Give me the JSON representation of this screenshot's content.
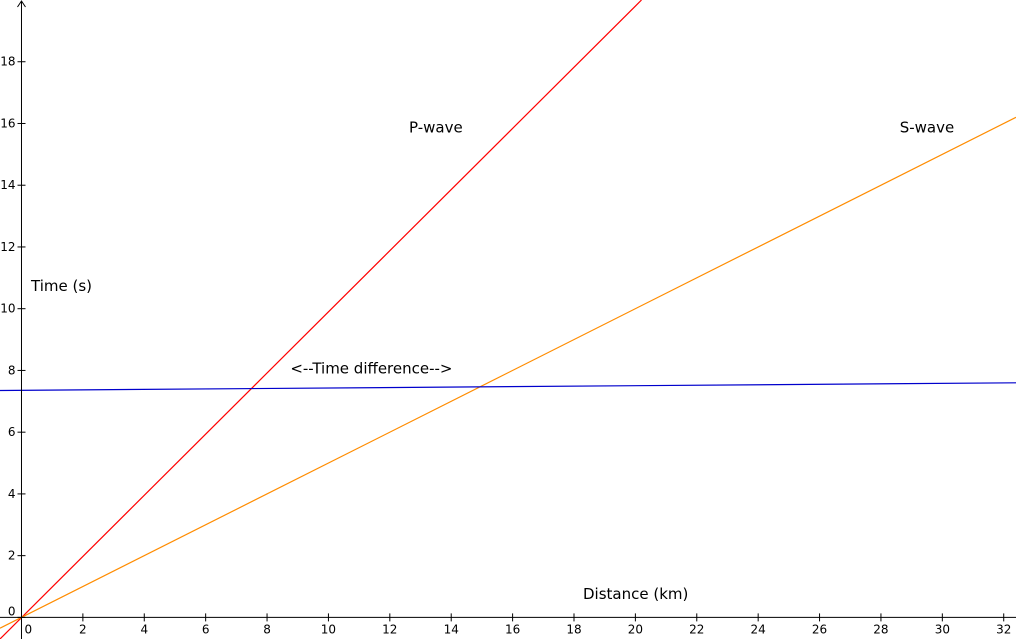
{
  "chart_data": {
    "type": "line",
    "title": "",
    "xlabel": "Distance (km)",
    "ylabel": "Time (s)",
    "xlim": [
      -0.7,
      32.4
    ],
    "ylim": [
      -0.7,
      20
    ],
    "x_ticks": [
      0,
      2,
      4,
      6,
      8,
      10,
      12,
      14,
      16,
      18,
      20,
      22,
      24,
      26,
      28,
      30,
      32
    ],
    "y_ticks": [
      0,
      2,
      4,
      6,
      8,
      10,
      12,
      14,
      16,
      18
    ],
    "grid": false,
    "series": [
      {
        "name": "P-wave",
        "color": "#ff0000",
        "x": [
          -0.7,
          20.2
        ],
        "y": [
          -0.7,
          20
        ]
      },
      {
        "name": "S-wave",
        "color": "#ff8c00",
        "x": [
          -0.7,
          32.4
        ],
        "y": [
          -0.35,
          16.2
        ]
      },
      {
        "name": "",
        "color": "#0000cc",
        "x": [
          -0.7,
          32.4
        ],
        "y": [
          7.35,
          7.6
        ]
      }
    ],
    "annotations": [
      {
        "text": "P-wave",
        "x": 13.5,
        "y": 15.7
      },
      {
        "text": "S-wave",
        "x": 29.5,
        "y": 15.7
      },
      {
        "text": "<--Time difference-->",
        "x": 11.4,
        "y": 7.9
      }
    ]
  }
}
